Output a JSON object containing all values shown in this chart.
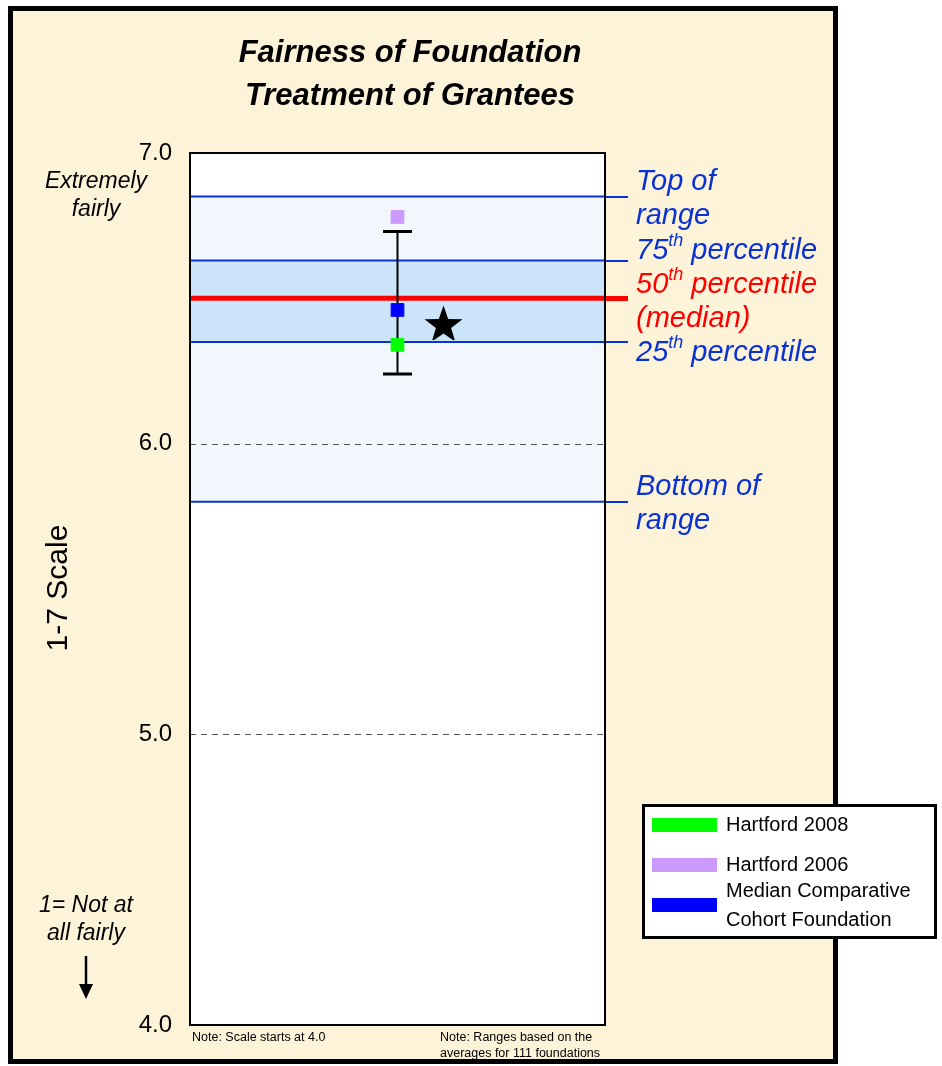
{
  "chart_data": {
    "type": "scatter",
    "title": "Fairness of Foundation Treatment of Grantees",
    "ylabel": "1-7 Scale",
    "categories": [
      null
    ],
    "series": [
      {
        "name": "Hartford 2008",
        "color": "#00ff00",
        "values": [
          6.34
        ]
      },
      {
        "name": "Hartford 2006",
        "color": "#cc99ff",
        "values": [
          6.78
        ]
      },
      {
        "name": "Median Comparative Cohort Foundation",
        "color": "#0000ff",
        "values": [
          6.46
        ],
        "errors": [
          [
            6.24,
            6.73
          ]
        ]
      }
    ],
    "marker": "square",
    "ylim": [
      4,
      7
    ],
    "yticks": [
      {
        "value": 4,
        "label": "4.0"
      },
      {
        "value": 5,
        "label": "5.0"
      },
      {
        "value": 6,
        "label": "6.0"
      },
      {
        "value": 7,
        "label": "7.0"
      }
    ],
    "tick_labels": "y",
    "grid": "y",
    "legend": "bottom right",
    "ref_lines": [
      {
        "axis": "y",
        "value": 6.85,
        "label": "Top of\nrange",
        "color": "#0a32d2"
      },
      {
        "axis": "y",
        "value": 6.63,
        "label": "75$^{th}$ percentile",
        "color": "#0a32d2"
      },
      {
        "axis": "y",
        "value": 6.5,
        "label": "50$^{th}$ percentile\n(median)",
        "color": "#ff0000"
      },
      {
        "axis": "y",
        "value": 6.35,
        "label": "25$^{th}$ percentile",
        "color": "#0a32d2"
      },
      {
        "axis": "y",
        "value": 5.8,
        "label": "Bottom of\nrange",
        "color": "#0a32d2"
      }
    ],
    "bands": [
      {
        "axis": "y",
        "from": 5.8,
        "to": 6.85,
        "color": "#f2f7fe"
      },
      {
        "axis": "y",
        "from": 6.35,
        "to": 6.63,
        "color": "#cce4fa"
      }
    ],
    "annotations": [
      "Extremely fairly",
      "1= Not at all fairly",
      "Note: Scale starts at 4.0",
      "Note: Ranges based on the averages for 111 foundations"
    ]
  }
}
